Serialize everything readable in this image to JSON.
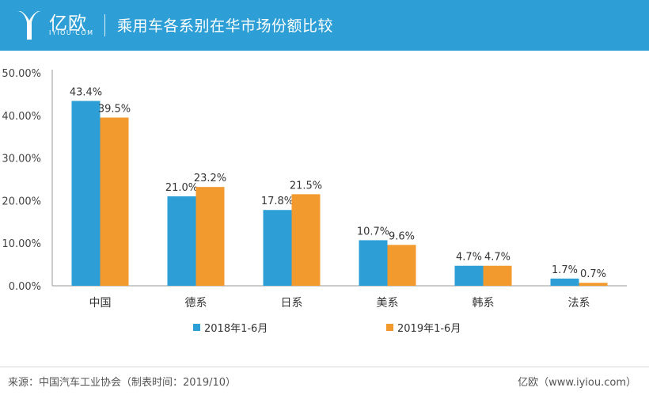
{
  "header": {
    "logo_text": "亿欧",
    "logo_sub": "IYIOU·COM",
    "title": "乘用车各系别在华市场份额比较",
    "bg_color": "#2e9fd6"
  },
  "chart_data": {
    "type": "bar",
    "title": "乘用车各系别在华市场份额比较",
    "categories": [
      "中国",
      "德系",
      "日系",
      "美系",
      "韩系",
      "法系"
    ],
    "series": [
      {
        "name": "2018年1-6月",
        "values": [
          43.4,
          21.0,
          17.8,
          10.7,
          4.7,
          1.7
        ],
        "labels": [
          "43.4%",
          "21.0%",
          "17.8%",
          "10.7%",
          "4.7%",
          "1.7%"
        ],
        "color": "#2e9fd6"
      },
      {
        "name": "2019年1-6月",
        "values": [
          39.5,
          23.2,
          21.5,
          9.6,
          4.7,
          0.7
        ],
        "labels": [
          "39.5%",
          "23.2%",
          "21.5%",
          "9.6%",
          "4.7%",
          "0.7%"
        ],
        "color": "#f39a2e"
      }
    ],
    "y_ticks": [
      "0.00%",
      "10.00%",
      "20.00%",
      "30.00%",
      "40.00%",
      "50.00%"
    ],
    "ylim": [
      0,
      50
    ],
    "xlabel": "",
    "ylabel": "",
    "grid": false,
    "legend_position": "bottom"
  },
  "footer": {
    "source": "来源：中国汽车工业协会（制表时间：2019/10）",
    "credit": "亿欧（www.iyiou.com）"
  }
}
